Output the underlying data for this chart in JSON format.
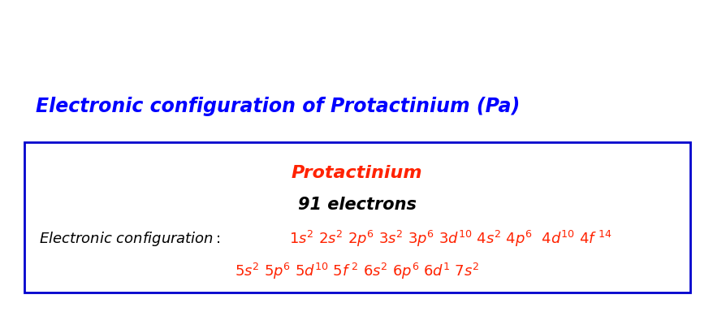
{
  "title": "Electronic configuration of Protactinium (Pa)",
  "title_color": "#0000FF",
  "title_fontsize": 17,
  "box_name": "Protactinium",
  "box_name_color": "#FF2200",
  "electrons_text": "91 electrons",
  "electrons_color": "#000000",
  "config_label": "Electronic configuration: ",
  "config_label_color": "#000000",
  "config_line1_color": "#FF2200",
  "config_line2_color": "#FF2200",
  "background_color": "#ffffff",
  "box_edge_color": "#0000CD",
  "figsize": [
    8.79,
    3.84
  ],
  "dpi": 100
}
